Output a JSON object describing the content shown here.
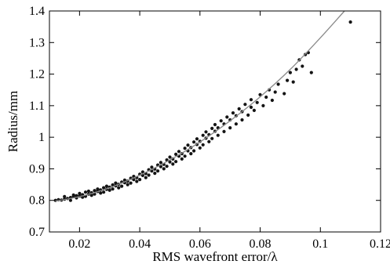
{
  "chart_data": {
    "type": "scatter",
    "title": "",
    "xlabel": "RMS wavefront error/λ",
    "ylabel": "Radius/mm",
    "xlim": [
      0.01,
      0.12
    ],
    "ylim": [
      0.7,
      1.4
    ],
    "xticks": [
      0.02,
      0.04,
      0.06,
      0.08,
      0.1,
      0.12
    ],
    "xtick_labels": [
      "0.02",
      "0.04",
      "0.06",
      "0.08",
      "0.1",
      "0.12"
    ],
    "yticks": [
      0.7,
      0.8,
      0.9,
      1.0,
      1.1,
      1.2,
      1.3,
      1.4
    ],
    "ytick_labels": [
      "0.7",
      "0.8",
      "0.9",
      "1",
      "1.1",
      "1.2",
      "1.3",
      "1.4"
    ],
    "grid": false,
    "legend": "none",
    "series": [
      {
        "kind": "scatter",
        "color": "#141414",
        "points": [
          [
            0.012,
            0.8
          ],
          [
            0.013,
            0.802
          ],
          [
            0.014,
            0.801
          ],
          [
            0.015,
            0.804
          ],
          [
            0.015,
            0.812
          ],
          [
            0.016,
            0.806
          ],
          [
            0.017,
            0.809
          ],
          [
            0.017,
            0.8
          ],
          [
            0.018,
            0.812
          ],
          [
            0.018,
            0.817
          ],
          [
            0.019,
            0.808
          ],
          [
            0.019,
            0.815
          ],
          [
            0.02,
            0.814
          ],
          [
            0.02,
            0.822
          ],
          [
            0.021,
            0.81
          ],
          [
            0.021,
            0.818
          ],
          [
            0.022,
            0.826
          ],
          [
            0.022,
            0.813
          ],
          [
            0.023,
            0.82
          ],
          [
            0.023,
            0.829
          ],
          [
            0.024,
            0.816
          ],
          [
            0.024,
            0.824
          ],
          [
            0.025,
            0.831
          ],
          [
            0.025,
            0.82
          ],
          [
            0.026,
            0.828
          ],
          [
            0.026,
            0.836
          ],
          [
            0.027,
            0.823
          ],
          [
            0.027,
            0.833
          ],
          [
            0.028,
            0.84
          ],
          [
            0.028,
            0.826
          ],
          [
            0.029,
            0.835
          ],
          [
            0.029,
            0.845
          ],
          [
            0.03,
            0.832
          ],
          [
            0.03,
            0.842
          ],
          [
            0.031,
            0.849
          ],
          [
            0.031,
            0.836
          ],
          [
            0.032,
            0.846
          ],
          [
            0.032,
            0.855
          ],
          [
            0.033,
            0.84
          ],
          [
            0.033,
            0.851
          ],
          [
            0.034,
            0.858
          ],
          [
            0.034,
            0.845
          ],
          [
            0.035,
            0.856
          ],
          [
            0.035,
            0.864
          ],
          [
            0.036,
            0.85
          ],
          [
            0.036,
            0.861
          ],
          [
            0.037,
            0.87
          ],
          [
            0.037,
            0.855
          ],
          [
            0.038,
            0.866
          ],
          [
            0.038,
            0.876
          ],
          [
            0.039,
            0.86
          ],
          [
            0.039,
            0.872
          ],
          [
            0.04,
            0.883
          ],
          [
            0.04,
            0.866
          ],
          [
            0.041,
            0.879
          ],
          [
            0.041,
            0.89
          ],
          [
            0.042,
            0.872
          ],
          [
            0.042,
            0.885
          ],
          [
            0.043,
            0.897
          ],
          [
            0.043,
            0.88
          ],
          [
            0.044,
            0.893
          ],
          [
            0.044,
            0.905
          ],
          [
            0.045,
            0.886
          ],
          [
            0.045,
            0.899
          ],
          [
            0.046,
            0.912
          ],
          [
            0.046,
            0.893
          ],
          [
            0.047,
            0.907
          ],
          [
            0.047,
            0.92
          ],
          [
            0.048,
            0.9
          ],
          [
            0.048,
            0.914
          ],
          [
            0.049,
            0.928
          ],
          [
            0.049,
            0.908
          ],
          [
            0.05,
            0.922
          ],
          [
            0.05,
            0.937
          ],
          [
            0.051,
            0.915
          ],
          [
            0.051,
            0.931
          ],
          [
            0.052,
            0.946
          ],
          [
            0.052,
            0.923
          ],
          [
            0.053,
            0.94
          ],
          [
            0.053,
            0.955
          ],
          [
            0.054,
            0.931
          ],
          [
            0.054,
            0.948
          ],
          [
            0.055,
            0.965
          ],
          [
            0.055,
            0.94
          ],
          [
            0.056,
            0.957
          ],
          [
            0.056,
            0.975
          ],
          [
            0.057,
            0.948
          ],
          [
            0.057,
            0.967
          ],
          [
            0.058,
            0.985
          ],
          [
            0.058,
            0.957
          ],
          [
            0.059,
            0.977
          ],
          [
            0.059,
            0.995
          ],
          [
            0.06,
            0.966
          ],
          [
            0.06,
            0.987
          ],
          [
            0.061,
            1.006
          ],
          [
            0.061,
            0.976
          ],
          [
            0.062,
            0.997
          ],
          [
            0.062,
            1.017
          ],
          [
            0.063,
            0.986
          ],
          [
            0.063,
            1.008
          ],
          [
            0.064,
            1.028
          ],
          [
            0.064,
            0.996
          ],
          [
            0.065,
            1.019
          ],
          [
            0.065,
            1.04
          ],
          [
            0.066,
            1.006
          ],
          [
            0.066,
            1.03
          ],
          [
            0.067,
            1.052
          ],
          [
            0.068,
            1.018
          ],
          [
            0.068,
            1.042
          ],
          [
            0.069,
            1.064
          ],
          [
            0.07,
            1.03
          ],
          [
            0.07,
            1.055
          ],
          [
            0.071,
            1.077
          ],
          [
            0.072,
            1.042
          ],
          [
            0.072,
            1.068
          ],
          [
            0.073,
            1.09
          ],
          [
            0.074,
            1.055
          ],
          [
            0.074,
            1.081
          ],
          [
            0.075,
            1.104
          ],
          [
            0.076,
            1.07
          ],
          [
            0.077,
            1.095
          ],
          [
            0.077,
            1.119
          ],
          [
            0.078,
            1.085
          ],
          [
            0.079,
            1.11
          ],
          [
            0.08,
            1.135
          ],
          [
            0.081,
            1.1
          ],
          [
            0.082,
            1.127
          ],
          [
            0.083,
            1.15
          ],
          [
            0.084,
            1.117
          ],
          [
            0.085,
            1.143
          ],
          [
            0.086,
            1.168
          ],
          [
            0.088,
            1.138
          ],
          [
            0.089,
            1.18
          ],
          [
            0.09,
            1.205
          ],
          [
            0.091,
            1.175
          ],
          [
            0.092,
            1.215
          ],
          [
            0.093,
            1.245
          ],
          [
            0.094,
            1.225
          ],
          [
            0.095,
            1.262
          ],
          [
            0.096,
            1.268
          ],
          [
            0.097,
            1.205
          ],
          [
            0.11,
            1.365
          ]
        ]
      },
      {
        "kind": "line",
        "color": "#8a8a8a",
        "x": [
          0.012,
          0.02,
          0.03,
          0.04,
          0.05,
          0.06,
          0.07,
          0.08,
          0.09,
          0.1,
          0.108
        ],
        "y": [
          0.798,
          0.812,
          0.84,
          0.88,
          0.928,
          0.985,
          1.052,
          1.128,
          1.215,
          1.315,
          1.4
        ]
      }
    ]
  }
}
